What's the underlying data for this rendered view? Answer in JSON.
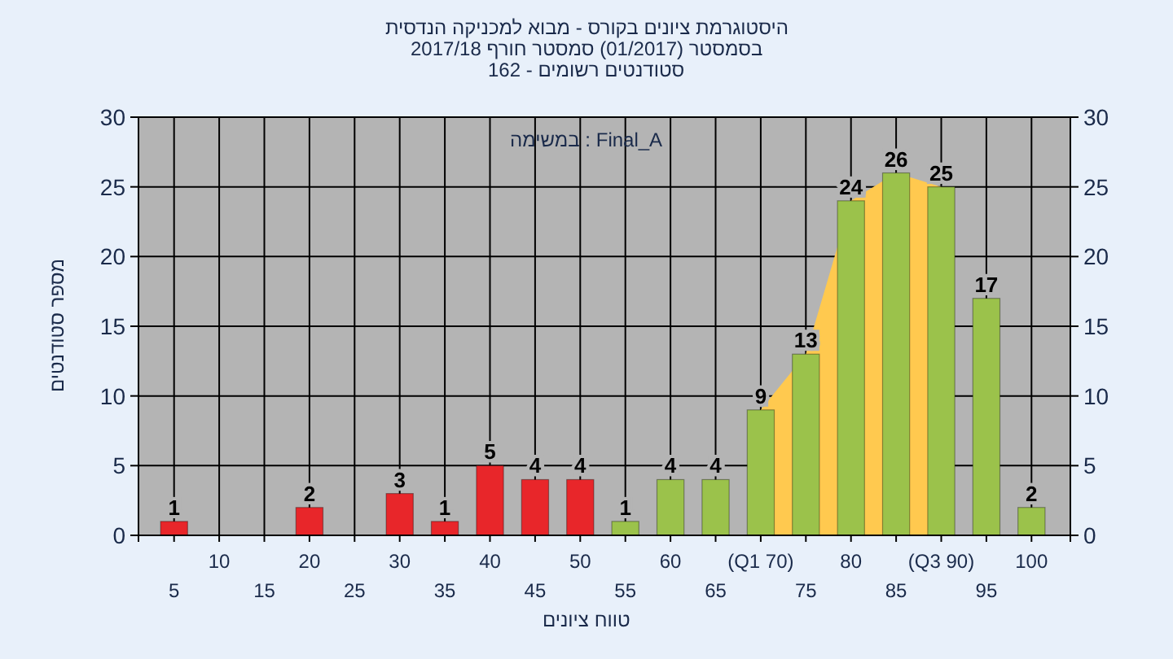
{
  "chart_data": {
    "type": "bar",
    "title": "היסטוגרמת ציונים בקורס - מבוא למכניקה הנדסית",
    "subtitle": "בסמסטר (01/2017) סמסטר חורף 2017/18",
    "annotations": [
      "סטודנטים רשומים - 162",
      "במשימה : Final_A"
    ],
    "xlabel": "טווח ציונים",
    "ylabel": "מספר סטודנטים",
    "categories": [
      "5",
      "10",
      "15",
      "20",
      "25",
      "30",
      "35",
      "40",
      "45",
      "50",
      "55",
      "60",
      "65",
      "(Q1 70)",
      "75",
      "80",
      "85",
      "(Q3 90)",
      "95",
      "100"
    ],
    "series": [
      {
        "type": "area",
        "color": "#ffc94f",
        "values": [
          null,
          null,
          null,
          null,
          null,
          null,
          null,
          null,
          null,
          null,
          null,
          null,
          null,
          9,
          13,
          24,
          26,
          25,
          null,
          null
        ]
      },
      {
        "type": "bar",
        "colors": [
          "#e8262a",
          "#e8262a",
          "#e8262a",
          "#e8262a",
          "#e8262a",
          "#e8262a",
          "#e8262a",
          "#e8262a",
          "#e8262a",
          "#e8262a",
          "#9bc24b",
          "#9bc24b",
          "#9bc24b",
          "#9bc24b",
          "#9bc24b",
          "#9bc24b",
          "#9bc24b",
          "#9bc24b",
          "#9bc24b",
          "#9bc24b"
        ],
        "values": [
          1,
          0,
          0,
          2,
          0,
          3,
          1,
          5,
          4,
          4,
          1,
          4,
          4,
          9,
          13,
          24,
          26,
          25,
          17,
          2
        ],
        "value_labels": [
          "1",
          null,
          null,
          "2",
          null,
          "3",
          "1",
          "5",
          "4",
          "4",
          "1",
          "4",
          "4",
          "9",
          "13",
          "24",
          "26",
          "25",
          "17",
          "2"
        ]
      }
    ],
    "ylim": [
      0,
      30
    ],
    "yticks": [
      0,
      5,
      10,
      15,
      20,
      25,
      30
    ],
    "y2lim": [
      0,
      30
    ],
    "y2ticks": [
      0,
      5,
      10,
      15,
      20,
      25,
      30
    ],
    "grid": true
  }
}
